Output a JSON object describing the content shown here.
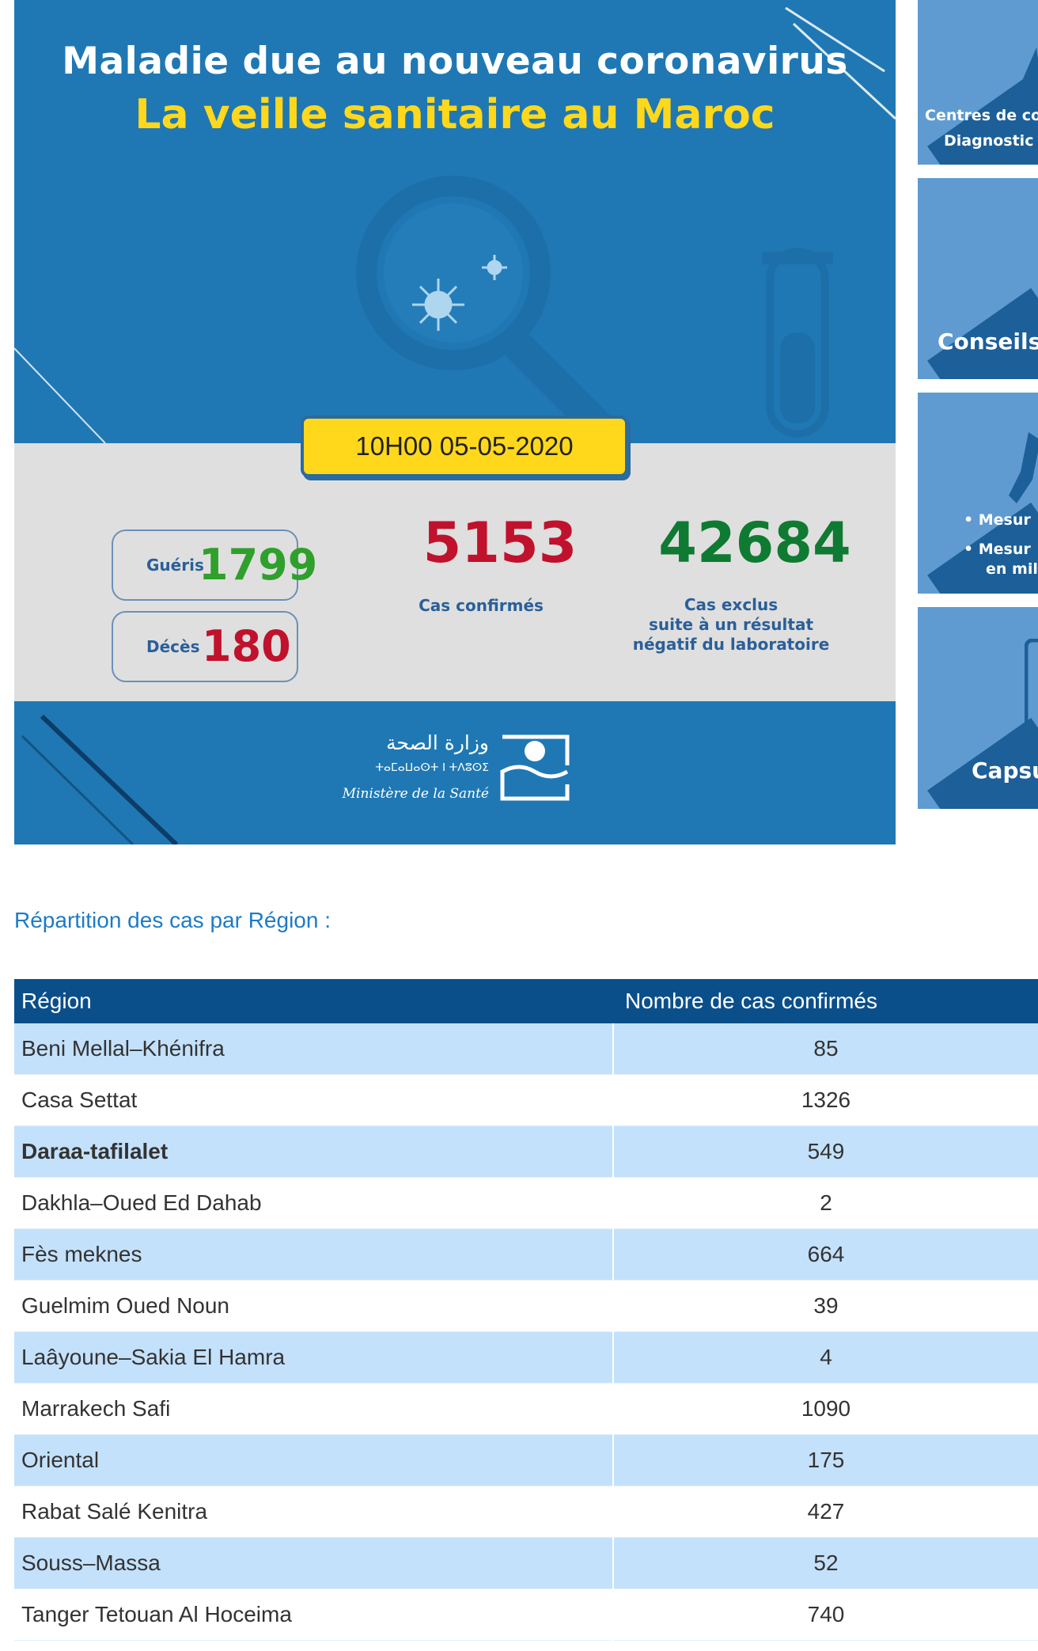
{
  "banner": {
    "title_line1": "Maladie due au nouveau coronavirus",
    "title_line2": "La veille sanitaire au Maroc",
    "datetime": "10H00  05-05-2020",
    "recovered_label": "Guéris",
    "recovered_value": "1799",
    "deaths_label": "Décès",
    "deaths_value": "180",
    "confirmed_value": "5153",
    "confirmed_label": "Cas confirmés",
    "excluded_value": "42684",
    "excluded_label_line1": "Cas exclus",
    "excluded_label_line2": "suite à un résultat",
    "excluded_label_line3": "négatif du laboratoire",
    "ministry_arabic": "وزارة الصحة",
    "ministry_tifinagh": "ⵜⴰⵎⴰⵡⴰⵙⵜ ⵏ ⵜⴷⵓⵙⵉ",
    "ministry_french": "Ministère de la Santé",
    "colors": {
      "banner_blue": "#1f78b4",
      "title_yellow": "#ffd81c",
      "recovered_green": "#2fa02b",
      "deaths_red": "#c0122c",
      "excluded_green": "#0f7a31"
    }
  },
  "side_cards": [
    {
      "line1": "Centres de co",
      "line2": "Diagnostic",
      "icon": "person-icon"
    },
    {
      "line1": "Conseils",
      "icon": "person-icon"
    },
    {
      "bullet1": "Mesur",
      "bullet2a": "Mesur",
      "bullet2b": "en mil",
      "icon": "person-icon"
    },
    {
      "line1": "Capsu",
      "icon": "phone-icon"
    }
  ],
  "section_title": "Répartition des cas par Région :",
  "table": {
    "headers": [
      "Région",
      "Nombre de cas confirmés"
    ],
    "rows": [
      {
        "region": "Beni Mellal–Khénifra",
        "cases": "85"
      },
      {
        "region": "Casa Settat",
        "cases": "1326"
      },
      {
        "region": "Daraa-tafilalet",
        "cases": "549"
      },
      {
        "region": "Dakhla–Oued Ed Dahab",
        "cases": "2"
      },
      {
        "region": "Fès meknes",
        "cases": "664"
      },
      {
        "region": "Guelmim Oued Noun",
        "cases": "39"
      },
      {
        "region": "Laâyoune–Sakia El Hamra",
        "cases": "4"
      },
      {
        "region": "Marrakech Safi",
        "cases": "1090"
      },
      {
        "region": "Oriental",
        "cases": "175"
      },
      {
        "region": "Rabat Salé Kenitra",
        "cases": "427"
      },
      {
        "region": "Souss–Massa",
        "cases": "52"
      },
      {
        "region": "Tanger Tetouan Al Hoceima",
        "cases": "740"
      }
    ]
  }
}
